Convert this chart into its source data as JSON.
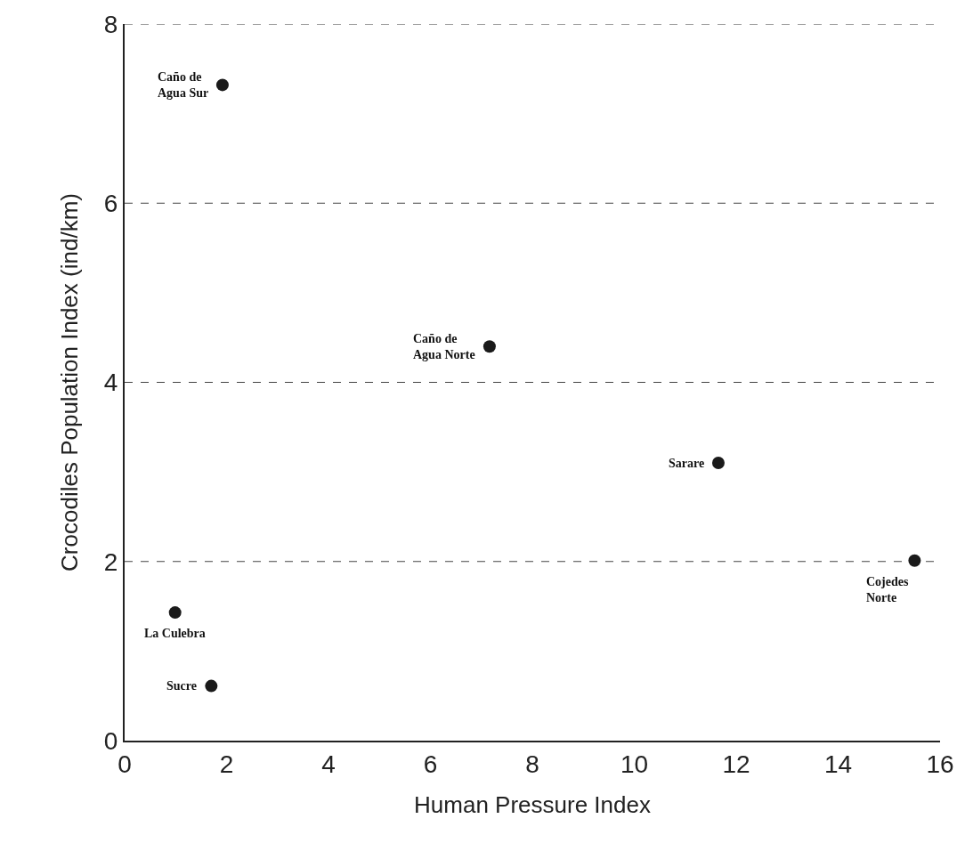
{
  "chart_data": {
    "type": "scatter",
    "xlabel": "Human Pressure Index",
    "ylabel": "Crocodiles Population Index (ind/km)",
    "x": [
      1.92,
      7.16,
      11.65,
      15.5,
      0.99,
      1.7
    ],
    "values": [
      7.32,
      4.4,
      3.1,
      2.01,
      1.43,
      0.61
    ],
    "color": "#1a1a1a",
    "marker": "circle",
    "xlim": [
      0,
      16
    ],
    "xticks": [
      0,
      2,
      4,
      6,
      8,
      10,
      12,
      14,
      16
    ],
    "ylim": [
      0,
      8
    ],
    "yticks": [
      0,
      2,
      4,
      6,
      8
    ],
    "grid": "y",
    "annotations": [
      {
        "text": "Caño de\nAgua Sur",
        "x": 1.92,
        "y": 7.32
      },
      {
        "text": "Caño de\nAgua Norte",
        "x": 7.16,
        "y": 4.4
      },
      {
        "text": "Sarare",
        "x": 11.65,
        "y": 3.1
      },
      {
        "text": "Cojedes\nNorte",
        "x": 15.5,
        "y": 2.01
      },
      {
        "text": "La Culebra",
        "x": 0.99,
        "y": 1.43
      },
      {
        "text": "Sucre",
        "x": 1.7,
        "y": 0.61
      }
    ]
  }
}
